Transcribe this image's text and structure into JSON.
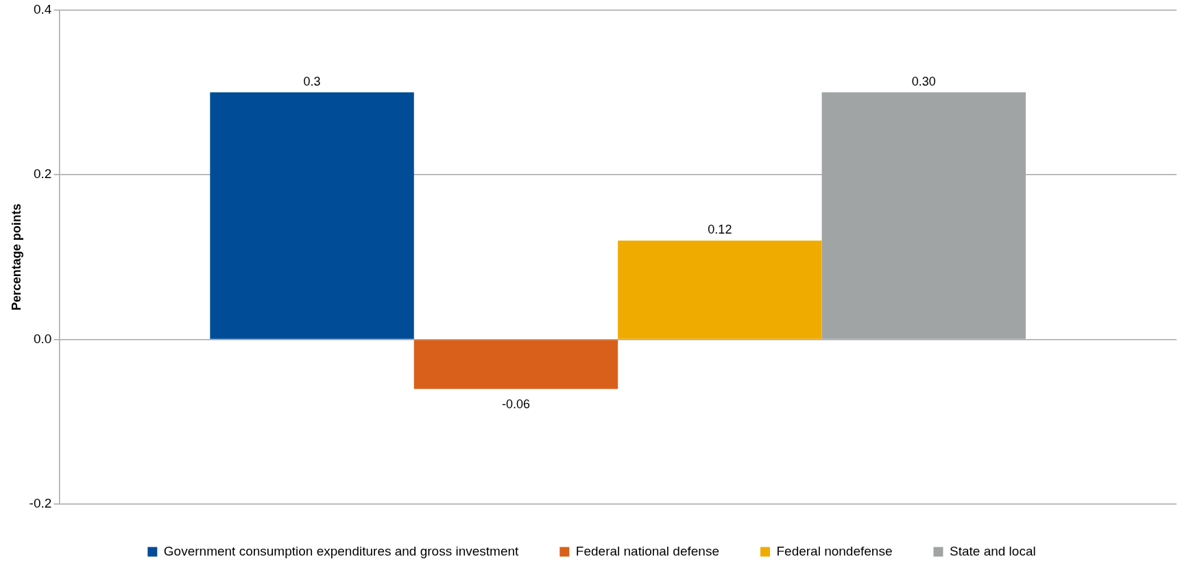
{
  "chart_data": {
    "type": "bar",
    "ylabel": "Percentage points",
    "categories": [
      null
    ],
    "series": [
      {
        "name": "Government consumption expenditures and gross investment",
        "color": "#004c97",
        "values": [
          0.3
        ],
        "value_labels": [
          "0.3"
        ]
      },
      {
        "name": "Federal national defense",
        "color": "#d9601a",
        "values": [
          -0.06
        ],
        "value_labels": [
          "-0.06"
        ]
      },
      {
        "name": "Federal nondefense",
        "color": "#f0ab00",
        "values": [
          0.12
        ],
        "value_labels": [
          "0.12"
        ]
      },
      {
        "name": "State and local",
        "color": "#a0a4a4",
        "values": [
          0.3
        ],
        "value_labels": [
          "0.30"
        ]
      }
    ],
    "ylim": [
      -0.2,
      0.4
    ],
    "yticks": [
      -0.2,
      0.2,
      {
        "value": 0,
        "label": "0.0"
      },
      0.4
    ],
    "grid": "y",
    "legend": "bottom"
  }
}
